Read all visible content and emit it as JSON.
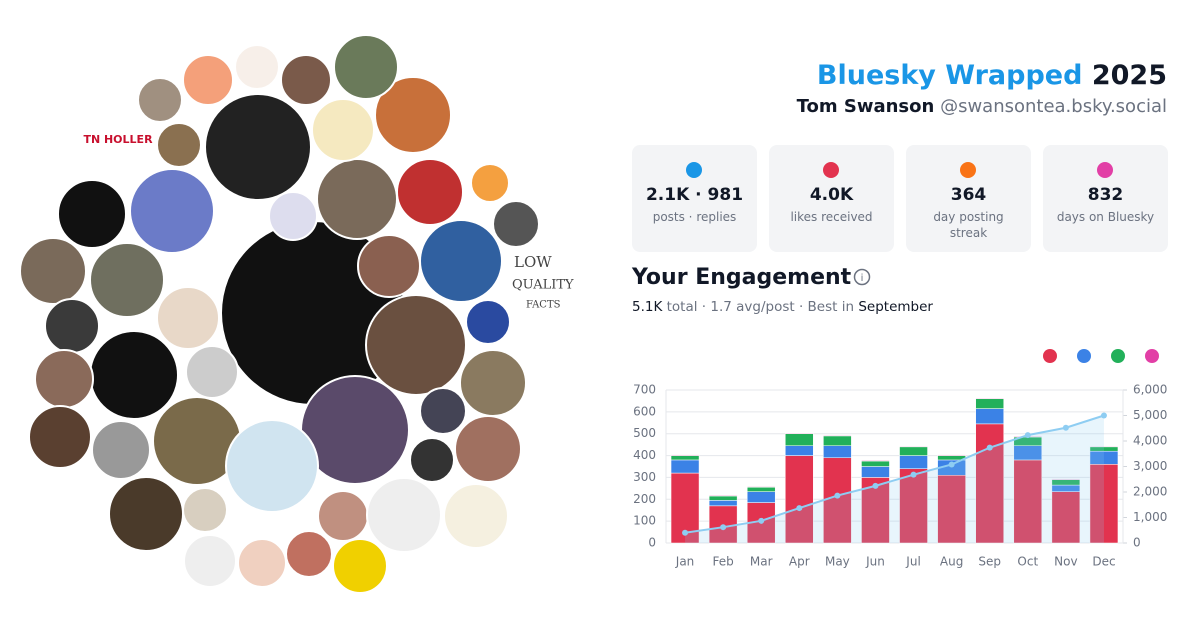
{
  "header": {
    "title": "Bluesky Wrapped",
    "year": "2025",
    "name": "Tom Swanson",
    "handle": "@swansontea.bsky.social"
  },
  "collage": {
    "labels": [
      "TN HOLLER",
      "LOW",
      "QUALITY",
      "FACTS"
    ]
  },
  "stats": [
    {
      "value": "2.1K · 981",
      "label": "posts · replies"
    },
    {
      "value": "4.0K",
      "label": "likes received"
    },
    {
      "value": "364",
      "label": "day posting streak"
    },
    {
      "value": "832",
      "label": "days on Bluesky"
    }
  ],
  "engagement": {
    "title": "Your Engagement",
    "total": "5.1K",
    "middle": "total · 1.7 avg/post · Best in",
    "best": "September"
  },
  "chart_data": {
    "type": "stacked-bar-line",
    "categories": [
      "Jan",
      "Feb",
      "Mar",
      "Apr",
      "May",
      "Jun",
      "Jul",
      "Aug",
      "Sep",
      "Oct",
      "Nov",
      "Dec"
    ],
    "series": [
      {
        "color": "#e2334f",
        "values": [
          320,
          170,
          185,
          400,
          390,
          300,
          340,
          310,
          545,
          380,
          235,
          360
        ]
      },
      {
        "color": "#3b82e6",
        "values": [
          60,
          25,
          50,
          45,
          55,
          50,
          60,
          70,
          70,
          65,
          30,
          60
        ]
      },
      {
        "color": "#22b05a",
        "values": [
          20,
          20,
          20,
          55,
          45,
          25,
          40,
          20,
          45,
          40,
          25,
          20
        ]
      },
      {
        "color": "#e23fa6",
        "values": [
          3,
          3,
          3,
          3,
          3,
          3,
          3,
          3,
          3,
          3,
          3,
          3
        ]
      },
      {
        "color": "#8ecdf2",
        "axis": "y2",
        "values": [
          400,
          620,
          870,
          1370,
          1860,
          2240,
          2680,
          3080,
          3740,
          4230,
          4520,
          5000
        ]
      }
    ],
    "ylim": [
      0,
      700
    ],
    "yticks": [
      0,
      100,
      200,
      300,
      400,
      500,
      600,
      700
    ],
    "y2lim": [
      0,
      6000
    ],
    "y2ticks": [
      0,
      {
        "value": 1000,
        "label": "1,000"
      },
      {
        "value": 2000,
        "label": "2,000"
      },
      {
        "value": 3000,
        "label": "3,000"
      },
      {
        "value": 4000,
        "label": "4,000"
      },
      {
        "value": 5000,
        "label": "5,000"
      },
      {
        "value": 6000,
        "label": "6,000"
      }
    ],
    "grid": true
  }
}
